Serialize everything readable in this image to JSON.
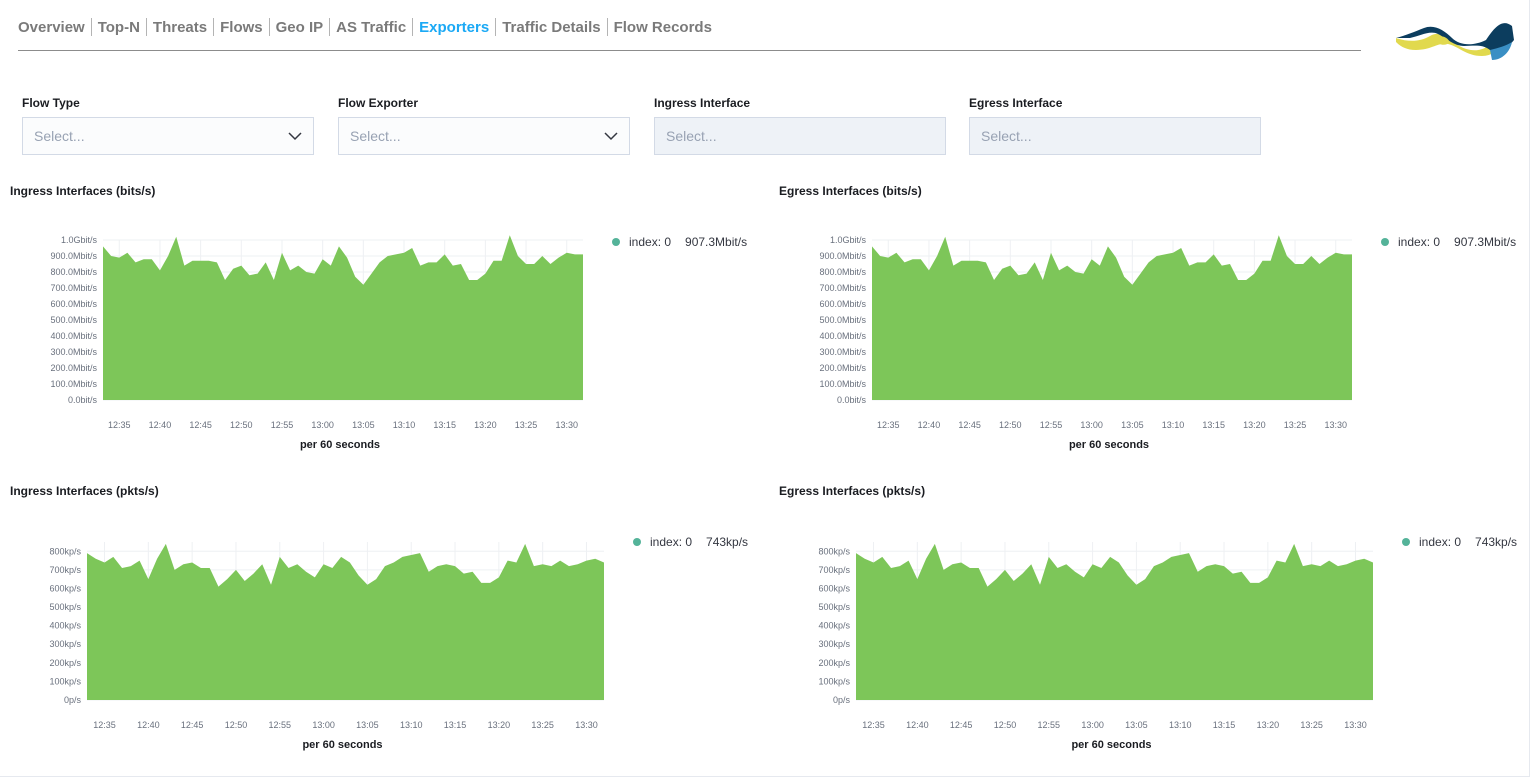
{
  "nav": {
    "tabs": [
      {
        "label": "Overview",
        "active": false
      },
      {
        "label": "Top-N",
        "active": false
      },
      {
        "label": "Threats",
        "active": false
      },
      {
        "label": "Flows",
        "active": false
      },
      {
        "label": "Geo IP",
        "active": false
      },
      {
        "label": "AS Traffic",
        "active": false
      },
      {
        "label": "Exporters",
        "active": true
      },
      {
        "label": "Traffic Details",
        "active": false
      },
      {
        "label": "Flow Records",
        "active": false
      }
    ]
  },
  "filters": [
    {
      "label": "Flow Type",
      "placeholder": "Select...",
      "disabled": false,
      "icon": "chevron-down-icon"
    },
    {
      "label": "Flow Exporter",
      "placeholder": "Select...",
      "disabled": false,
      "icon": "chevron-down-icon"
    },
    {
      "label": "Ingress Interface",
      "placeholder": "Select...",
      "disabled": true
    },
    {
      "label": "Egress Interface",
      "placeholder": "Select...",
      "disabled": true
    }
  ],
  "colors": {
    "area": "#7dc659",
    "legend_dot": "#54b399",
    "active_tab": "#1ba9f5",
    "logo_navy": "#0c3d5e",
    "logo_yellow": "#e1d94e",
    "logo_blue": "#3a8fc4"
  },
  "chart_data": [
    {
      "type": "area",
      "title": "Ingress Interfaces (bits/s)",
      "xlabel": "per 60 seconds",
      "x_start": "12:33",
      "x_step_minutes": 1,
      "x_ticks": [
        "12:35",
        "12:40",
        "12:45",
        "12:50",
        "12:55",
        "13:00",
        "13:05",
        "13:10",
        "13:15",
        "13:20",
        "13:25",
        "13:30"
      ],
      "x_tick_minutes": [
        2,
        7,
        12,
        17,
        22,
        27,
        32,
        37,
        42,
        47,
        52,
        57
      ],
      "y_ticks": [
        "0.0bit/s",
        "100.0Mbit/s",
        "200.0Mbit/s",
        "300.0Mbit/s",
        "400.0Mbit/s",
        "500.0Mbit/s",
        "600.0Mbit/s",
        "700.0Mbit/s",
        "800.0Mbit/s",
        "900.0Mbit/s",
        "1.0Gbit/s"
      ],
      "ylim": [
        0,
        1000
      ],
      "unit": "Mbit/s",
      "series": [
        {
          "name": "index: 0",
          "legend_value": "907.3Mbit/s",
          "values": [
            960,
            900,
            890,
            920,
            860,
            880,
            880,
            810,
            900,
            1020,
            840,
            870,
            870,
            870,
            860,
            750,
            820,
            840,
            780,
            790,
            860,
            750,
            920,
            810,
            840,
            800,
            790,
            880,
            840,
            960,
            890,
            770,
            720,
            790,
            860,
            900,
            910,
            920,
            950,
            840,
            860,
            860,
            910,
            840,
            850,
            750,
            750,
            790,
            870,
            870,
            1030,
            900,
            850,
            850,
            900,
            850,
            890,
            920,
            910,
            910
          ]
        }
      ]
    },
    {
      "type": "area",
      "title": "Egress Interfaces (bits/s)",
      "xlabel": "per 60 seconds",
      "x_start": "12:33",
      "x_step_minutes": 1,
      "x_ticks": [
        "12:35",
        "12:40",
        "12:45",
        "12:50",
        "12:55",
        "13:00",
        "13:05",
        "13:10",
        "13:15",
        "13:20",
        "13:25",
        "13:30"
      ],
      "x_tick_minutes": [
        2,
        7,
        12,
        17,
        22,
        27,
        32,
        37,
        42,
        47,
        52,
        57
      ],
      "y_ticks": [
        "0.0bit/s",
        "100.0Mbit/s",
        "200.0Mbit/s",
        "300.0Mbit/s",
        "400.0Mbit/s",
        "500.0Mbit/s",
        "600.0Mbit/s",
        "700.0Mbit/s",
        "800.0Mbit/s",
        "900.0Mbit/s",
        "1.0Gbit/s"
      ],
      "ylim": [
        0,
        1000
      ],
      "unit": "Mbit/s",
      "series": [
        {
          "name": "index: 0",
          "legend_value": "907.3Mbit/s",
          "values": [
            960,
            900,
            890,
            920,
            860,
            880,
            880,
            810,
            900,
            1020,
            840,
            870,
            870,
            870,
            860,
            750,
            820,
            840,
            780,
            790,
            860,
            750,
            920,
            810,
            840,
            800,
            790,
            880,
            840,
            960,
            890,
            770,
            720,
            790,
            860,
            900,
            910,
            920,
            950,
            840,
            860,
            860,
            910,
            840,
            850,
            750,
            750,
            790,
            870,
            870,
            1030,
            900,
            850,
            850,
            900,
            850,
            890,
            920,
            910,
            910
          ]
        }
      ]
    },
    {
      "type": "area",
      "title": "Ingress Interfaces (pkts/s)",
      "xlabel": "per 60 seconds",
      "x_start": "12:33",
      "x_step_minutes": 1,
      "x_ticks": [
        "12:35",
        "12:40",
        "12:45",
        "12:50",
        "12:55",
        "13:00",
        "13:05",
        "13:10",
        "13:15",
        "13:20",
        "13:25",
        "13:30"
      ],
      "x_tick_minutes": [
        2,
        7,
        12,
        17,
        22,
        27,
        32,
        37,
        42,
        47,
        52,
        57
      ],
      "y_ticks": [
        "0p/s",
        "100kp/s",
        "200kp/s",
        "300kp/s",
        "400kp/s",
        "500kp/s",
        "600kp/s",
        "700kp/s",
        "800kp/s"
      ],
      "ylim": [
        0,
        850
      ],
      "unit": "kp/s",
      "series": [
        {
          "name": "index: 0",
          "legend_value": "743kp/s",
          "values": [
            790,
            760,
            740,
            770,
            710,
            720,
            750,
            650,
            760,
            840,
            700,
            730,
            740,
            710,
            710,
            610,
            650,
            700,
            640,
            680,
            730,
            620,
            770,
            710,
            730,
            690,
            660,
            730,
            710,
            770,
            740,
            670,
            620,
            650,
            720,
            740,
            770,
            780,
            790,
            690,
            720,
            730,
            720,
            680,
            690,
            630,
            630,
            660,
            750,
            740,
            840,
            720,
            730,
            720,
            750,
            720,
            730,
            750,
            760,
            740
          ]
        }
      ]
    },
    {
      "type": "area",
      "title": "Egress Interfaces (pkts/s)",
      "xlabel": "per 60 seconds",
      "x_start": "12:33",
      "x_step_minutes": 1,
      "x_ticks": [
        "12:35",
        "12:40",
        "12:45",
        "12:50",
        "12:55",
        "13:00",
        "13:05",
        "13:10",
        "13:15",
        "13:20",
        "13:25",
        "13:30"
      ],
      "x_tick_minutes": [
        2,
        7,
        12,
        17,
        22,
        27,
        32,
        37,
        42,
        47,
        52,
        57
      ],
      "y_ticks": [
        "0p/s",
        "100kp/s",
        "200kp/s",
        "300kp/s",
        "400kp/s",
        "500kp/s",
        "600kp/s",
        "700kp/s",
        "800kp/s"
      ],
      "ylim": [
        0,
        850
      ],
      "unit": "kp/s",
      "series": [
        {
          "name": "index: 0",
          "legend_value": "743kp/s",
          "values": [
            790,
            760,
            740,
            770,
            710,
            720,
            750,
            650,
            760,
            840,
            700,
            730,
            740,
            710,
            710,
            610,
            650,
            700,
            640,
            680,
            730,
            620,
            770,
            710,
            730,
            690,
            660,
            730,
            710,
            770,
            740,
            670,
            620,
            650,
            720,
            740,
            770,
            780,
            790,
            690,
            720,
            730,
            720,
            680,
            690,
            630,
            630,
            660,
            750,
            740,
            840,
            720,
            730,
            720,
            750,
            720,
            730,
            750,
            760,
            740
          ]
        }
      ]
    }
  ]
}
